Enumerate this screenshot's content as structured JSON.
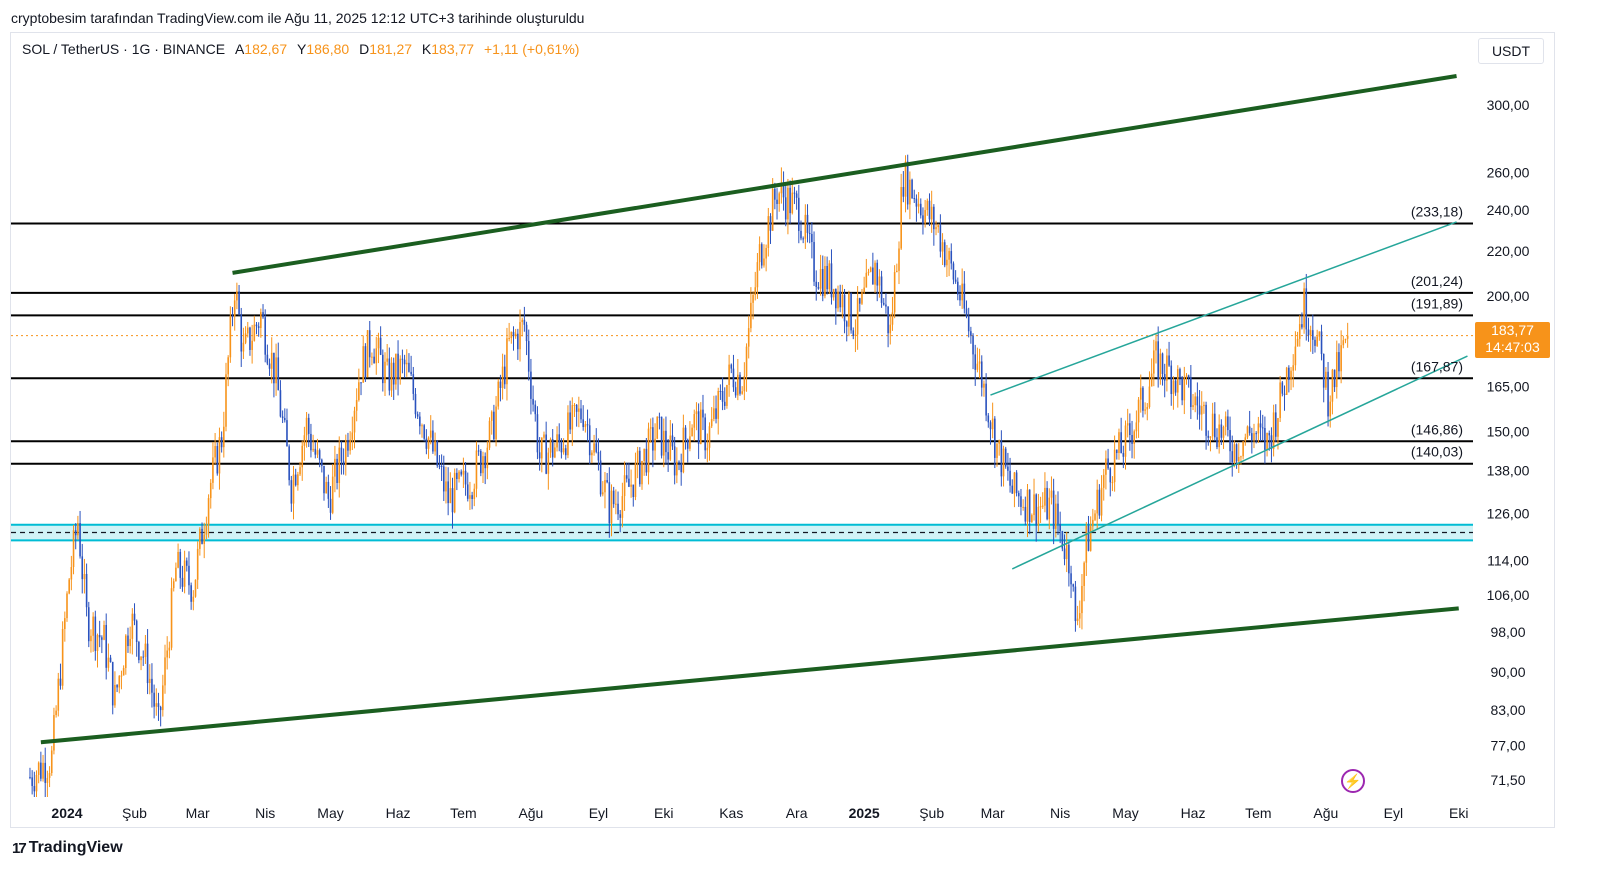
{
  "caption": "cryptobesim tarafından TradingView.com ile Ağu 11, 2025 12:12 UTC+3 tarihinde oluşturuldu",
  "legend": {
    "symbol": "SOL / TetherUS · 1G · BINANCE",
    "open_label": "A",
    "open": "182,67",
    "high_label": "Y",
    "high": "186,80",
    "low_label": "D",
    "low": "181,27",
    "close_label": "K",
    "close": "183,77",
    "change": "+1,11 (+0,61%)"
  },
  "currency": "USDT",
  "price_badge": {
    "price": "183,77",
    "countdown": "14:47:03"
  },
  "branding": {
    "logo_text": "TradingView",
    "logo_mark": "17"
  },
  "icons": {
    "bolt": "lightning-icon"
  },
  "colors": {
    "up": "#f7931a",
    "down": "#2a52be",
    "channel": "#1b5e20",
    "inner_channel": "#26a69a",
    "support_zone": "#00bcd4",
    "level": "#000000",
    "current_price": "#f7931a"
  },
  "chart_data": {
    "type": "candlestick",
    "y_scale": "log",
    "ylim": [
      69,
      330
    ],
    "y_ticks": [
      {
        "v": 300,
        "label": "300,00"
      },
      {
        "v": 260,
        "label": "260,00"
      },
      {
        "v": 240,
        "label": "240,00"
      },
      {
        "v": 220,
        "label": "220,00"
      },
      {
        "v": 200,
        "label": "200,00"
      },
      {
        "v": 165,
        "label": "165,00"
      },
      {
        "v": 150,
        "label": "150,00"
      },
      {
        "v": 138,
        "label": "138,00"
      },
      {
        "v": 126,
        "label": "126,00"
      },
      {
        "v": 114,
        "label": "114,00"
      },
      {
        "v": 106,
        "label": "106,00"
      },
      {
        "v": 98,
        "label": "98,00"
      },
      {
        "v": 90,
        "label": "90,00"
      },
      {
        "v": 83,
        "label": "83,00"
      },
      {
        "v": 77,
        "label": "77,00"
      },
      {
        "v": 71.5,
        "label": "71,50"
      }
    ],
    "x_ticks": [
      {
        "label": "2024",
        "bold": true,
        "date": "2024-01-01"
      },
      {
        "label": "Şub",
        "date": "2024-02-01"
      },
      {
        "label": "Mar",
        "date": "2024-03-01"
      },
      {
        "label": "Nis",
        "date": "2024-04-01"
      },
      {
        "label": "May",
        "date": "2024-05-01"
      },
      {
        "label": "Haz",
        "date": "2024-06-01"
      },
      {
        "label": "Tem",
        "date": "2024-07-01"
      },
      {
        "label": "Ağu",
        "date": "2024-08-01"
      },
      {
        "label": "Eyl",
        "date": "2024-09-01"
      },
      {
        "label": "Eki",
        "date": "2024-10-01"
      },
      {
        "label": "Kas",
        "date": "2024-11-01"
      },
      {
        "label": "Ara",
        "date": "2024-12-01"
      },
      {
        "label": "2025",
        "bold": true,
        "date": "2025-01-01"
      },
      {
        "label": "Şub",
        "date": "2025-02-01"
      },
      {
        "label": "Mar",
        "date": "2025-03-01"
      },
      {
        "label": "Nis",
        "date": "2025-04-01"
      },
      {
        "label": "May",
        "date": "2025-05-01"
      },
      {
        "label": "Haz",
        "date": "2025-06-01"
      },
      {
        "label": "Tem",
        "date": "2025-07-01"
      },
      {
        "label": "Ağu",
        "date": "2025-08-01"
      },
      {
        "label": "Eyl",
        "date": "2025-09-01"
      },
      {
        "label": "Eki",
        "date": "2025-10-01"
      }
    ],
    "levels": [
      {
        "value": 233.18,
        "label": "(233,18)"
      },
      {
        "value": 201.24,
        "label": "(201,24)"
      },
      {
        "value": 191.89,
        "label": "(191,89)"
      },
      {
        "value": 167.87,
        "label": "(167,87)"
      },
      {
        "value": 146.86,
        "label": "(146,86)"
      },
      {
        "value": 140.03,
        "label": "(140,03)"
      }
    ],
    "support_zone": {
      "low": 119,
      "high": 123,
      "mid": 121
    },
    "current_price": 183.77,
    "channels": [
      {
        "name": "outer-upper",
        "kind": "thick",
        "points": [
          {
            "date": "2024-03-17",
            "value": 210
          },
          {
            "date": "2025-09-30",
            "value": 319
          }
        ]
      },
      {
        "name": "outer-lower",
        "kind": "thick",
        "points": [
          {
            "date": "2023-12-20",
            "value": 77.5
          },
          {
            "date": "2025-10-01",
            "value": 103
          }
        ]
      },
      {
        "name": "inner-upper",
        "kind": "thin",
        "points": [
          {
            "date": "2025-02-28",
            "value": 162
          },
          {
            "date": "2025-09-30",
            "value": 234
          }
        ]
      },
      {
        "name": "inner-lower",
        "kind": "thin",
        "points": [
          {
            "date": "2025-03-10",
            "value": 112
          },
          {
            "date": "2025-10-05",
            "value": 176
          }
        ]
      }
    ],
    "path": [
      [
        "2023-12-15",
        72
      ],
      [
        "2023-12-25",
        75
      ],
      [
        "2024-01-02",
        110
      ],
      [
        "2024-01-06",
        124
      ],
      [
        "2024-01-10",
        101
      ],
      [
        "2024-01-18",
        96
      ],
      [
        "2024-01-23",
        85
      ],
      [
        "2024-01-30",
        101
      ],
      [
        "2024-02-07",
        91
      ],
      [
        "2024-02-12",
        80
      ],
      [
        "2024-02-20",
        112
      ],
      [
        "2024-02-28",
        108
      ],
      [
        "2024-03-06",
        132
      ],
      [
        "2024-03-12",
        148
      ],
      [
        "2024-03-18",
        205
      ],
      [
        "2024-03-22",
        177
      ],
      [
        "2024-03-30",
        192
      ],
      [
        "2024-04-06",
        168
      ],
      [
        "2024-04-13",
        134
      ],
      [
        "2024-04-20",
        152
      ],
      [
        "2024-04-30",
        130
      ],
      [
        "2024-05-08",
        146
      ],
      [
        "2024-05-15",
        172
      ],
      [
        "2024-05-20",
        182
      ],
      [
        "2024-05-27",
        168
      ],
      [
        "2024-06-04",
        172
      ],
      [
        "2024-06-14",
        150
      ],
      [
        "2024-06-24",
        130
      ],
      [
        "2024-07-05",
        136
      ],
      [
        "2024-07-14",
        150
      ],
      [
        "2024-07-22",
        180
      ],
      [
        "2024-07-29",
        188
      ],
      [
        "2024-08-05",
        142
      ],
      [
        "2024-08-14",
        146
      ],
      [
        "2024-08-25",
        157
      ],
      [
        "2024-09-06",
        128
      ],
      [
        "2024-09-14",
        132
      ],
      [
        "2024-09-28",
        150
      ],
      [
        "2024-10-07",
        140
      ],
      [
        "2024-10-14",
        154
      ],
      [
        "2024-10-21",
        148
      ],
      [
        "2024-11-01",
        170
      ],
      [
        "2024-11-06",
        168
      ],
      [
        "2024-11-14",
        218
      ],
      [
        "2024-11-22",
        250
      ],
      [
        "2024-12-02",
        240
      ],
      [
        "2024-12-09",
        212
      ],
      [
        "2024-12-18",
        205
      ],
      [
        "2024-12-28",
        188
      ],
      [
        "2025-01-06",
        213
      ],
      [
        "2025-01-13",
        185
      ],
      [
        "2025-01-19",
        258
      ],
      [
        "2025-01-26",
        245
      ],
      [
        "2025-02-04",
        230
      ],
      [
        "2025-02-14",
        200
      ],
      [
        "2025-02-24",
        168
      ],
      [
        "2025-03-03",
        145
      ],
      [
        "2025-03-10",
        132
      ],
      [
        "2025-03-20",
        128
      ],
      [
        "2025-03-28",
        128
      ],
      [
        "2025-04-06",
        113
      ],
      [
        "2025-04-08",
        98
      ],
      [
        "2025-04-13",
        118
      ],
      [
        "2025-04-22",
        138
      ],
      [
        "2025-05-01",
        146
      ],
      [
        "2025-05-10",
        162
      ],
      [
        "2025-05-15",
        174
      ],
      [
        "2025-05-22",
        170
      ],
      [
        "2025-05-30",
        162
      ],
      [
        "2025-06-07",
        155
      ],
      [
        "2025-06-14",
        150
      ],
      [
        "2025-06-20",
        145
      ],
      [
        "2025-06-28",
        150
      ],
      [
        "2025-07-05",
        146
      ],
      [
        "2025-07-11",
        160
      ],
      [
        "2025-07-17",
        180
      ],
      [
        "2025-07-22",
        196
      ],
      [
        "2025-07-27",
        186
      ],
      [
        "2025-08-02",
        162
      ],
      [
        "2025-08-06",
        170
      ],
      [
        "2025-08-11",
        183.77
      ]
    ]
  }
}
